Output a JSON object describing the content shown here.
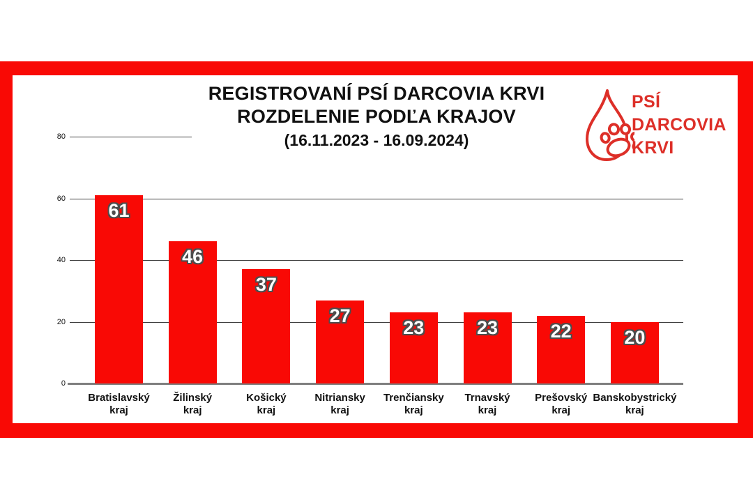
{
  "poster": {
    "frame_color": "#f90905",
    "background": "#ffffff"
  },
  "title": {
    "line1": "REGISTROVANÍ PSÍ DARCOVIA KRVI",
    "line2": "ROZDELENIE PODĽA KRAJOV",
    "subtitle": "(16.11.2023 - 16.09.2024)"
  },
  "logo": {
    "line1": "PSÍ",
    "line2": "DARCOVIA",
    "line3": "KRVI",
    "color": "#dd2f28",
    "drop_icon": "blood-drop-icon",
    "paw_icon": "paw-print-icon"
  },
  "chart_data": {
    "type": "bar",
    "categories": [
      "Bratislavský kraj",
      "Žilinský kraj",
      "Košický kraj",
      "Nitriansky kraj",
      "Trenčiansky kraj",
      "Trnavský kraj",
      "Prešovský kraj",
      "Banskobystrický kraj"
    ],
    "values": [
      61,
      46,
      37,
      27,
      23,
      23,
      22,
      20
    ],
    "title": "REGISTROVANÍ PSÍ DARCOVIA KRVI — ROZDELENIE PODĽA KRAJOV (16.11.2023 - 16.09.2024)",
    "xlabel": "",
    "ylabel": "",
    "ylim": [
      0,
      80
    ],
    "yticks": [
      0,
      20,
      40,
      60,
      80
    ],
    "grid": true,
    "legend": false,
    "bar_color": "#f90905",
    "value_label_color": "#ffffff",
    "value_label_outline": "#4d4d4d",
    "gridline_color": "#3f3f3f",
    "baseline_color": "#7f7f7f",
    "top_gridline_truncated": true
  }
}
